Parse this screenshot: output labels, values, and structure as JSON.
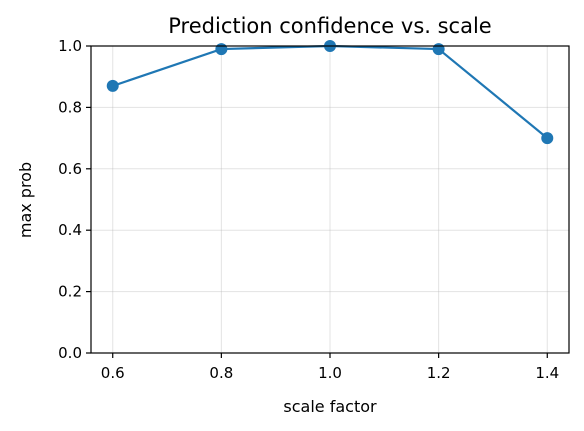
{
  "chart_data": {
    "type": "line",
    "title": "Prediction confidence vs. scale",
    "xlabel": "scale factor",
    "ylabel": "max prob",
    "x": [
      0.6,
      0.8,
      1.0,
      1.2,
      1.4
    ],
    "series": [
      {
        "values": [
          0.87,
          0.99,
          1.0,
          0.99,
          0.7
        ],
        "color": "#1f77b4",
        "marker": "circle"
      }
    ],
    "xlim": [
      0.56,
      1.44
    ],
    "ylim": [
      0.0,
      1.0
    ],
    "xticks": [
      "0.6",
      "0.8",
      "1.0",
      "1.2",
      "1.4"
    ],
    "yticks": [
      "0.0",
      "0.2",
      "0.4",
      "0.6",
      "0.8",
      "1.0"
    ],
    "grid": true
  }
}
